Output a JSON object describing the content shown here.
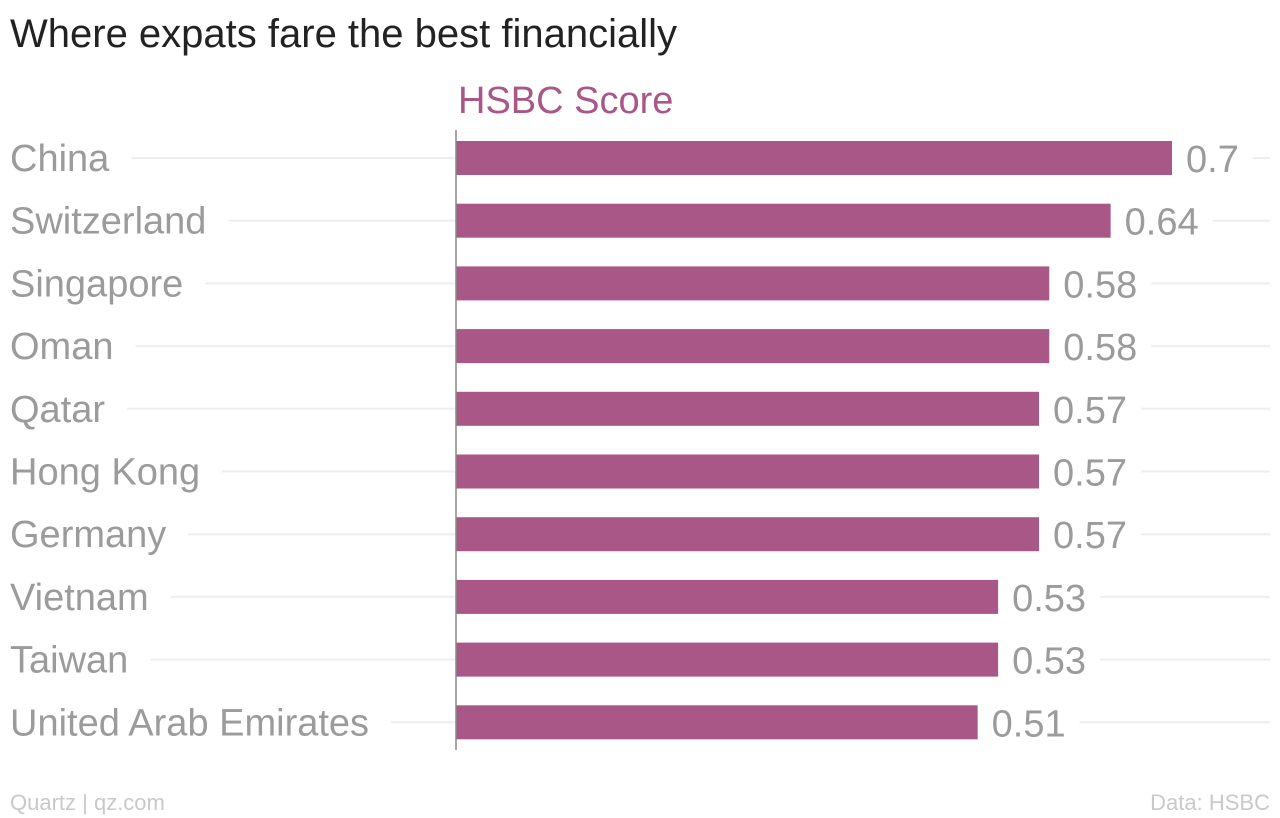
{
  "chart_data": {
    "type": "bar",
    "orientation": "horizontal",
    "title": "Where expats fare the best financially",
    "categories": [
      "China",
      "Switzerland",
      "Singapore",
      "Oman",
      "Qatar",
      "Hong Kong",
      "Germany",
      "Vietnam",
      "Taiwan",
      "United Arab Emirates"
    ],
    "series": [
      {
        "name": "HSBC Score",
        "values": [
          0.7,
          0.64,
          0.58,
          0.58,
          0.57,
          0.57,
          0.57,
          0.53,
          0.53,
          0.51
        ],
        "value_labels": [
          "0.7",
          "0.64",
          "0.58",
          "0.58",
          "0.57",
          "0.57",
          "0.57",
          "0.53",
          "0.53",
          "0.51"
        ]
      }
    ],
    "xlim": [
      0,
      0.7
    ],
    "grid": true,
    "legend": "none",
    "colors": {
      "bar": "#a85787",
      "series_label": "#a85787",
      "category_label": "#9b9b9b",
      "grid": "#eeeeee",
      "axis": "#888888"
    }
  },
  "footer": {
    "source_left": "Quartz | qz.com",
    "source_right": "Data: HSBC"
  }
}
